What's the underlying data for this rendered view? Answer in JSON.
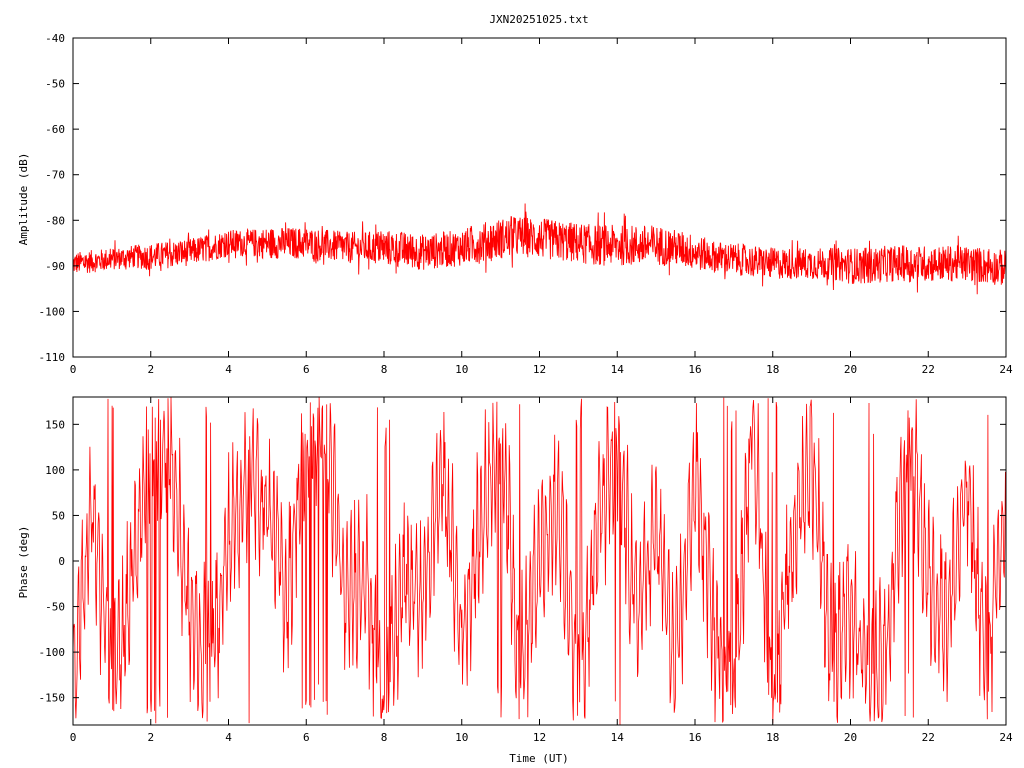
{
  "chart_data": [
    {
      "type": "line",
      "title": "JXN20251025.txt",
      "xlabel": "",
      "ylabel": "Amplitude (dB)",
      "xlim": [
        0,
        24
      ],
      "ylim": [
        -110,
        -40
      ],
      "x_ticks": [
        "0",
        "2",
        "4",
        "6",
        "8",
        "10",
        "12",
        "14",
        "16",
        "18",
        "20",
        "22",
        "24"
      ],
      "y_ticks": [
        "-40",
        "-50",
        "-60",
        "-70",
        "-80",
        "-90",
        "-100",
        "-110"
      ],
      "grid": false,
      "series": [
        {
          "color": "#ff0000",
          "note_envelope": "dense noisy trace",
          "x": [
            0,
            0.5,
            1,
            1.5,
            2,
            2.5,
            3,
            3.5,
            4,
            4.5,
            5,
            5.5,
            6,
            6.5,
            7,
            7.5,
            8,
            8.5,
            9,
            9.5,
            10,
            10.5,
            11,
            11.5,
            12,
            12.5,
            13,
            13.5,
            14,
            14.5,
            15,
            15.5,
            16,
            16.5,
            17,
            17.5,
            18,
            18.5,
            19,
            19.5,
            20,
            20.5,
            21,
            21.5,
            22,
            22.5,
            23,
            23.5,
            24
          ],
          "values": [
            -89.5,
            -89,
            -88.5,
            -88,
            -88,
            -87.5,
            -87,
            -86,
            -85,
            -85,
            -85,
            -85,
            -85,
            -85.5,
            -86,
            -86,
            -86,
            -86.5,
            -87,
            -86.5,
            -86,
            -85,
            -84,
            -83.5,
            -84,
            -84.5,
            -85,
            -85.5,
            -85.5,
            -85.5,
            -85.5,
            -86,
            -87,
            -88,
            -88.5,
            -89,
            -89.5,
            -89.5,
            -89.5,
            -89.5,
            -90,
            -90,
            -89.5,
            -89.5,
            -89.5,
            -89.5,
            -89.5,
            -90,
            -90.5
          ],
          "spread": [
            2.5,
            2.5,
            2.5,
            2.5,
            3,
            3,
            3,
            3,
            3,
            3,
            3.5,
            3.5,
            3.5,
            3.5,
            3.5,
            3.5,
            4,
            4,
            4,
            4,
            4,
            4.5,
            4.5,
            4.5,
            4.5,
            4.5,
            4.5,
            4.5,
            4.5,
            4.5,
            4.5,
            4,
            4,
            3.5,
            3.5,
            3.5,
            3.5,
            3.5,
            3.5,
            3.5,
            4,
            4,
            4,
            4,
            4,
            4,
            4,
            4,
            4
          ]
        }
      ]
    },
    {
      "type": "line",
      "title": "",
      "xlabel": "Time (UT)",
      "ylabel": "Phase (deg)",
      "xlim": [
        0,
        24
      ],
      "ylim": [
        -180,
        180
      ],
      "x_ticks": [
        "0",
        "2",
        "4",
        "6",
        "8",
        "10",
        "12",
        "14",
        "16",
        "18",
        "20",
        "22",
        "24"
      ],
      "y_ticks": [
        "150",
        "100",
        "50",
        "0",
        "-50",
        "-100",
        "-150"
      ],
      "grid": false,
      "series": [
        {
          "color": "#ff0000",
          "x": [
            0,
            0.5,
            1,
            1.5,
            2,
            2.5,
            3,
            3.5,
            4,
            4.5,
            5,
            5.5,
            6,
            6.5,
            7,
            7.5,
            8,
            8.5,
            9,
            9.5,
            10,
            10.5,
            11,
            11.5,
            12,
            12.5,
            13,
            13.5,
            14,
            14.5,
            15,
            15.5,
            16,
            16.5,
            17,
            17.5,
            18,
            18.5,
            19,
            19.5,
            20,
            20.5,
            21,
            21.5,
            22,
            22.5,
            23,
            23.5,
            24
          ],
          "values": [
            -120,
            60,
            -150,
            -30,
            150,
            120,
            -60,
            -120,
            20,
            100,
            60,
            -40,
            140,
            150,
            -50,
            0,
            -170,
            -20,
            -40,
            100,
            -80,
            40,
            160,
            -120,
            0,
            60,
            -150,
            40,
            120,
            -60,
            40,
            -120,
            100,
            -80,
            -150,
            160,
            -170,
            20,
            120,
            -100,
            -60,
            -140,
            -80,
            160,
            -20,
            -60,
            80,
            -120,
            60
          ]
        }
      ]
    }
  ]
}
